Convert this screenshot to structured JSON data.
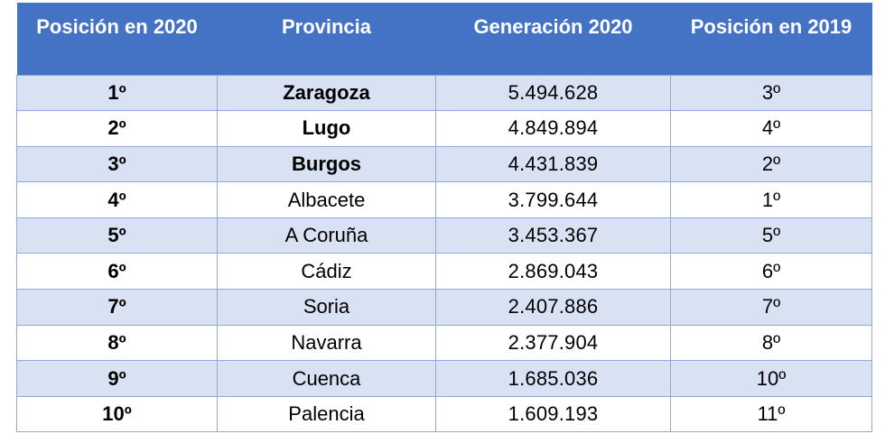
{
  "table": {
    "headers": [
      "Posición en 2020",
      "Provincia",
      "Generación 2020",
      "Posición en 2019"
    ],
    "rows": [
      {
        "pos2020": "1º",
        "provincia": "Zaragoza",
        "generacion": "5.494.628",
        "pos2019": "3º",
        "bold": true
      },
      {
        "pos2020": "2º",
        "provincia": "Lugo",
        "generacion": "4.849.894",
        "pos2019": "4º",
        "bold": true
      },
      {
        "pos2020": "3º",
        "provincia": "Burgos",
        "generacion": "4.431.839",
        "pos2019": "2º",
        "bold": true
      },
      {
        "pos2020": "4º",
        "provincia": "Albacete",
        "generacion": "3.799.644",
        "pos2019": "1º",
        "bold": false
      },
      {
        "pos2020": "5º",
        "provincia": "A Coruña",
        "generacion": "3.453.367",
        "pos2019": "5º",
        "bold": false
      },
      {
        "pos2020": "6º",
        "provincia": "Cádiz",
        "generacion": "2.869.043",
        "pos2019": "6º",
        "bold": false
      },
      {
        "pos2020": "7º",
        "provincia": "Soria",
        "generacion": "2.407.886",
        "pos2019": "7º",
        "bold": false
      },
      {
        "pos2020": "8º",
        "provincia": "Navarra",
        "generacion": "2.377.904",
        "pos2019": "8º",
        "bold": false
      },
      {
        "pos2020": "9º",
        "provincia": "Cuenca",
        "generacion": "1.685.036",
        "pos2019": "10º",
        "bold": false
      },
      {
        "pos2020": "10º",
        "provincia": "Palencia",
        "generacion": "1.609.193",
        "pos2019": "11º",
        "bold": false
      }
    ]
  },
  "colors": {
    "header_bg": "#4472c4",
    "band_bg": "#d9e2f3",
    "border": "#8eaadb"
  }
}
